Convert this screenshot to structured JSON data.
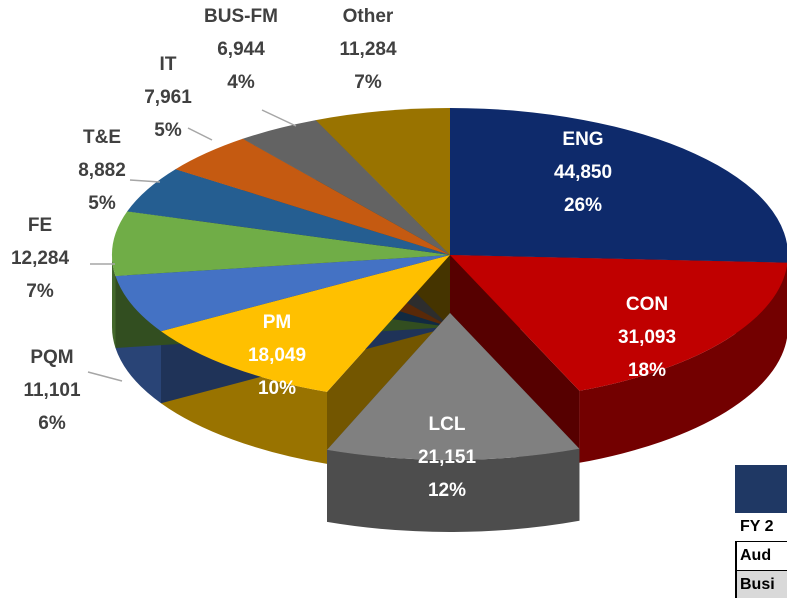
{
  "chart_data": {
    "type": "pie",
    "categories": [
      "ENG",
      "CON",
      "LCL",
      "PM",
      "PQM",
      "FE",
      "T&E",
      "IT",
      "BUS-FM",
      "Other"
    ],
    "values": [
      44850,
      31093,
      21151,
      18049,
      11101,
      12284,
      8882,
      7961,
      6944,
      11284
    ],
    "value_labels": [
      "44,850",
      "31,093",
      "21,151",
      "18,049",
      "11,101",
      "12,284",
      "8,882",
      "7,961",
      "6,944",
      "11,284"
    ],
    "percents": [
      26,
      18,
      12,
      10,
      6,
      7,
      5,
      5,
      4,
      7
    ],
    "percent_labels": [
      "26%",
      "18%",
      "12%",
      "10%",
      "6%",
      "7%",
      "5%",
      "5%",
      "4%",
      "7%"
    ],
    "colors": [
      "#0e2a6b",
      "#c00000",
      "#808080",
      "#ffc000",
      "#4472c4",
      "#70ad47",
      "#255e91",
      "#c55a11",
      "#636363",
      "#997300"
    ]
  },
  "table": {
    "rows": [
      [
        "FY 2"
      ],
      [
        "Aud"
      ],
      [
        "Busi"
      ]
    ]
  }
}
